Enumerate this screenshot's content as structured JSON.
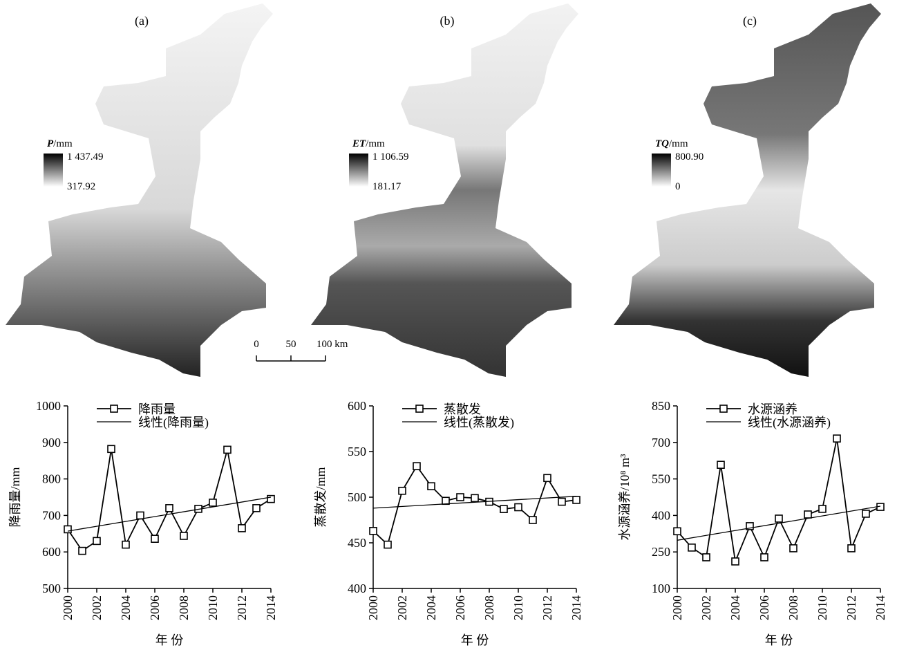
{
  "maps": [
    {
      "title": "(a)",
      "legend_var": "P",
      "legend_unit": "/mm",
      "legend_max": "1 437.49",
      "legend_min": "317.92"
    },
    {
      "title": "(b)",
      "legend_var": "ET",
      "legend_unit": "/mm",
      "legend_max": "1 106.59",
      "legend_min": "181.17"
    },
    {
      "title": "(c)",
      "legend_var": "TQ",
      "legend_unit": "/mm",
      "legend_max": "800.90",
      "legend_min": "0"
    }
  ],
  "scale_bar": {
    "labels": [
      "0",
      "50",
      "100 km"
    ]
  },
  "chart_data": [
    {
      "type": "line",
      "x_label": "年 份",
      "y_label": "降雨量/mm",
      "x": [
        2000,
        2001,
        2002,
        2003,
        2004,
        2005,
        2006,
        2007,
        2008,
        2009,
        2010,
        2011,
        2012,
        2013,
        2014
      ],
      "xlim": [
        2000,
        2014
      ],
      "xticks": [
        2000,
        2002,
        2004,
        2006,
        2008,
        2010,
        2012,
        2014
      ],
      "ylim": [
        500,
        1000
      ],
      "yticks": [
        500,
        600,
        700,
        800,
        900,
        1000
      ],
      "series": [
        {
          "name": "降雨量",
          "color": "#000000",
          "marker": "square",
          "values": [
            662,
            603,
            630,
            882,
            620,
            700,
            636,
            720,
            644,
            718,
            735,
            880,
            665,
            720,
            745
          ]
        },
        {
          "name": "线性(降雨量)",
          "color": "#000000",
          "x": [
            2000,
            2014
          ],
          "values": [
            657,
            750
          ]
        }
      ]
    },
    {
      "type": "line",
      "x_label": "年 份",
      "y_label": "蒸散发/mm",
      "x": [
        2000,
        2001,
        2002,
        2003,
        2004,
        2005,
        2006,
        2007,
        2008,
        2009,
        2010,
        2011,
        2012,
        2013,
        2014
      ],
      "xlim": [
        2000,
        2014
      ],
      "xticks": [
        2000,
        2002,
        2004,
        2006,
        2008,
        2010,
        2012,
        2014
      ],
      "ylim": [
        400,
        600
      ],
      "yticks": [
        400,
        450,
        500,
        550,
        600
      ],
      "series": [
        {
          "name": "蒸散发",
          "color": "#000000",
          "marker": "square",
          "values": [
            463,
            448,
            507,
            534,
            512,
            496,
            500,
            499,
            495,
            487,
            489,
            475,
            521,
            495,
            497
          ]
        },
        {
          "name": "线性(蒸散发)",
          "color": "#000000",
          "x": [
            2000,
            2014
          ],
          "values": [
            488,
            501
          ]
        }
      ]
    },
    {
      "type": "line",
      "x_label": "年 份",
      "y_label": "水源涵养/10⁸ m³",
      "x": [
        2000,
        2001,
        2002,
        2003,
        2004,
        2005,
        2006,
        2007,
        2008,
        2009,
        2010,
        2011,
        2012,
        2013,
        2014
      ],
      "xlim": [
        2000,
        2014
      ],
      "xticks": [
        2000,
        2002,
        2004,
        2006,
        2008,
        2010,
        2012,
        2014
      ],
      "ylim": [
        100,
        850
      ],
      "yticks": [
        100,
        250,
        400,
        550,
        700,
        850
      ],
      "series": [
        {
          "name": "水源涵养",
          "color": "#000000",
          "marker": "square",
          "values": [
            335,
            268,
            228,
            608,
            211,
            356,
            228,
            387,
            265,
            404,
            427,
            716,
            265,
            407,
            435
          ]
        },
        {
          "name": "线性(水源涵养)",
          "color": "#000000",
          "x": [
            2000,
            2014
          ],
          "values": [
            298,
            438
          ]
        }
      ]
    }
  ]
}
